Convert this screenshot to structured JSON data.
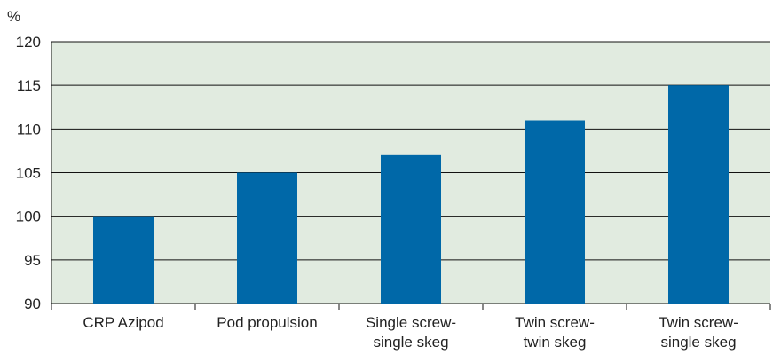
{
  "chart_data": {
    "type": "bar",
    "unit_label": "%",
    "categories": [
      [
        "CRP Azipod"
      ],
      [
        "Pod propulsion"
      ],
      [
        "Single screw-",
        "single skeg"
      ],
      [
        "Twin screw-",
        "twin skeg"
      ],
      [
        "Twin screw-",
        "single skeg"
      ]
    ],
    "values": [
      100,
      105,
      107,
      111,
      115
    ],
    "ylim": [
      90,
      120
    ],
    "yticks": [
      "90",
      "95",
      "100",
      "105",
      "110",
      "115",
      "120"
    ],
    "grid": "horizontal",
    "colors": {
      "bar": "#0068a8",
      "plot_background": "#e1ebe0",
      "grid": "#111111"
    }
  }
}
